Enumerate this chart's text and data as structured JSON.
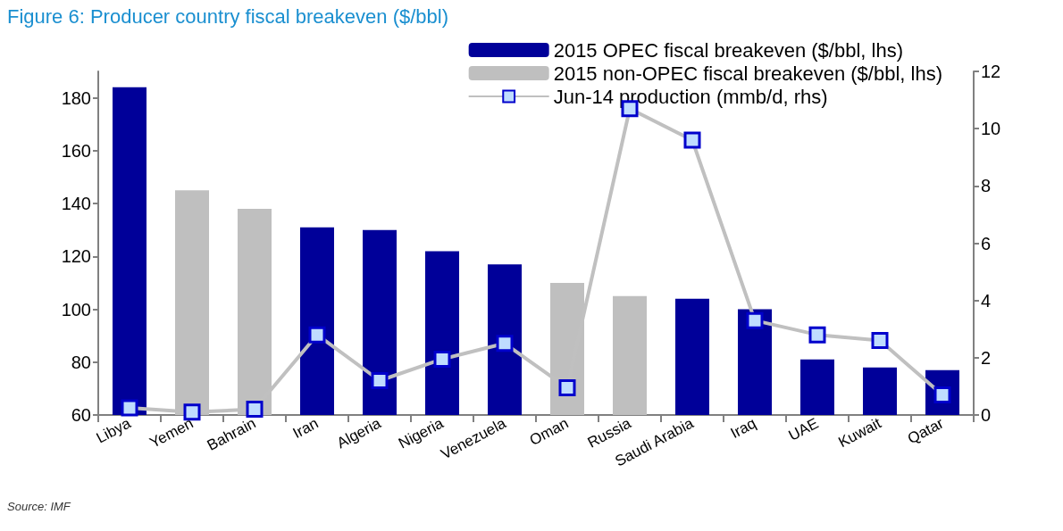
{
  "chart_data": {
    "type": "bar",
    "title": "Figure 6: Producer country fiscal breakeven ($/bbl)",
    "categories": [
      "Libya",
      "Yemen",
      "Bahrain",
      "Iran",
      "Algeria",
      "Nigeria",
      "Venezuela",
      "Oman",
      "Russia",
      "Saudi Arabia",
      "Iraq",
      "UAE",
      "Kuwait",
      "Qatar"
    ],
    "series": [
      {
        "name": "2015 OPEC fiscal breakeven ($/bbl, lhs)",
        "color": "#000099",
        "values": [
          184,
          null,
          null,
          131,
          130,
          122,
          117,
          null,
          null,
          104,
          100,
          81,
          78,
          77
        ]
      },
      {
        "name": "2015 non-OPEC fiscal breakeven ($/bbl, lhs)",
        "color": "#bfbfbf",
        "values": [
          null,
          145,
          138,
          null,
          null,
          null,
          null,
          110,
          105,
          null,
          null,
          null,
          null,
          null
        ]
      },
      {
        "name": "Jun-14 production (mmb/d, rhs)",
        "type": "line",
        "axis": "y2",
        "color": "#c0c0c0",
        "marker": "square",
        "values": [
          0.25,
          0.1,
          0.2,
          2.8,
          1.2,
          1.95,
          2.5,
          0.95,
          10.7,
          9.6,
          3.3,
          2.8,
          2.6,
          0.7
        ]
      }
    ],
    "ylim": [
      60,
      190
    ],
    "yticks": [
      60,
      80,
      100,
      120,
      140,
      160,
      180
    ],
    "y2lim": [
      0,
      12
    ],
    "y2ticks": [
      0,
      2,
      4,
      6,
      8,
      10,
      12
    ],
    "grid": false,
    "legend": "top right",
    "annotations": [
      "Source: IMF"
    ]
  }
}
